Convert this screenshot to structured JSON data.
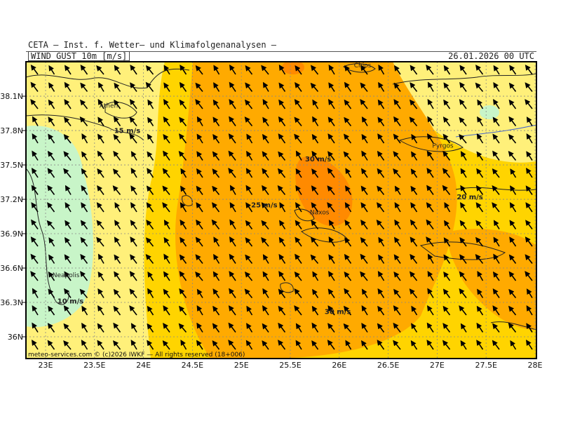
{
  "header": {
    "title": "CETA — Inst. f. Wetter— und Klimafolgenanalysen —",
    "variable": "WIND_GUST_10m [m/s]",
    "valid_time": "26.01.2026 00 UTC"
  },
  "axes": {
    "lat_labels": [
      "38.1N",
      "37.8N",
      "37.5N",
      "37.2N",
      "36.9N",
      "36.6N",
      "36.3N",
      "36N"
    ],
    "lon_labels": [
      "23E",
      "23.5E",
      "24E",
      "24.5E",
      "25E",
      "25.5E",
      "26E",
      "26.5E",
      "27E",
      "27.5E",
      "28E"
    ],
    "lat_values": [
      38.1,
      37.8,
      37.5,
      37.2,
      36.9,
      36.6,
      36.3,
      36.0
    ],
    "lon_values": [
      23.0,
      23.5,
      24.0,
      24.5,
      25.0,
      25.5,
      26.0,
      26.5,
      27.0,
      27.5,
      28.0
    ]
  },
  "places": [
    {
      "name": "Athen",
      "lat": 38.0,
      "lon": 23.55
    },
    {
      "name": "Chios",
      "lat": 38.35,
      "lon": 26.15
    },
    {
      "name": "Pyrgos",
      "lat": 37.65,
      "lon": 26.95
    },
    {
      "name": "Naxos",
      "lat": 37.07,
      "lon": 25.7
    },
    {
      "name": "Neapolis",
      "lat": 36.52,
      "lon": 23.07
    }
  ],
  "speed_labels": [
    {
      "text": "15 m/s",
      "lat": 37.78,
      "lon": 23.7
    },
    {
      "text": "30 m/s",
      "lat": 37.53,
      "lon": 25.65
    },
    {
      "text": "25 m/s",
      "lat": 37.13,
      "lon": 25.1
    },
    {
      "text": "20 m/s",
      "lat": 37.2,
      "lon": 27.2
    },
    {
      "text": "10 m/s",
      "lat": 36.29,
      "lon": 23.12
    },
    {
      "text": "30 m/s",
      "lat": 36.2,
      "lon": 25.85
    }
  ],
  "legend_colors": {
    "10_15": "#c8f5c8",
    "15_20": "#fff07a",
    "20_25": "#ffd400",
    "25_30": "#ffaa00",
    "30_35": "#ff8a00"
  },
  "wind_direction": "from south-east (arrows point north-west)",
  "footer": "meteo-services.com © (c)2026 IWKF — All rights reserved (18+006)"
}
